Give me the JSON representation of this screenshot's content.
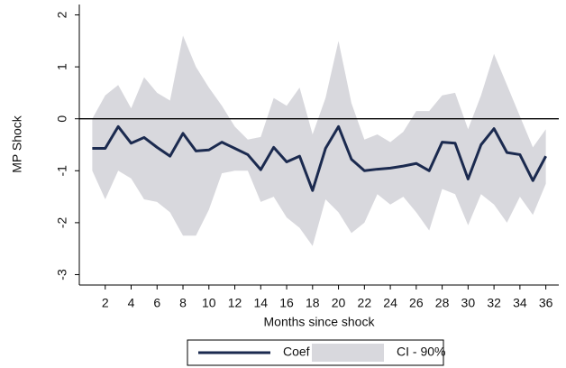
{
  "chart_data": {
    "type": "line",
    "x_label": "Months since shock",
    "y_label": "MP Shock",
    "x": [
      1,
      2,
      3,
      4,
      5,
      6,
      7,
      8,
      9,
      10,
      11,
      12,
      13,
      14,
      15,
      16,
      17,
      18,
      19,
      20,
      21,
      22,
      23,
      24,
      25,
      26,
      27,
      28,
      29,
      30,
      31,
      32,
      33,
      34,
      35,
      36
    ],
    "series": [
      {
        "name": "Coef",
        "color": "#1b2a4f",
        "values": [
          -0.57,
          -0.57,
          -0.15,
          -0.47,
          -0.36,
          -0.55,
          -0.72,
          -0.28,
          -0.62,
          -0.6,
          -0.45,
          -0.57,
          -0.69,
          -0.98,
          -0.55,
          -0.83,
          -0.72,
          -1.38,
          -0.57,
          -0.15,
          -0.78,
          -1.0,
          -0.97,
          -0.95,
          -0.91,
          -0.86,
          -1.0,
          -0.45,
          -0.47,
          -1.16,
          -0.5,
          -0.19,
          -0.65,
          -0.69,
          -1.19,
          -0.72
        ]
      },
      {
        "name": "CI - 90%",
        "color": "#d8d8dd",
        "upper": [
          0.0,
          0.45,
          0.65,
          0.2,
          0.8,
          0.5,
          0.35,
          1.6,
          1.0,
          0.6,
          0.25,
          -0.15,
          -0.4,
          -0.35,
          0.4,
          0.25,
          0.6,
          -0.3,
          0.4,
          1.5,
          0.3,
          -0.4,
          -0.3,
          -0.45,
          -0.25,
          0.15,
          0.15,
          0.45,
          0.5,
          -0.2,
          0.45,
          1.25,
          0.65,
          0.05,
          -0.55,
          -0.2
        ],
        "lower": [
          -1.0,
          -1.55,
          -1.0,
          -1.15,
          -1.55,
          -1.6,
          -1.8,
          -2.25,
          -2.25,
          -1.75,
          -1.05,
          -1.0,
          -1.0,
          -1.6,
          -1.5,
          -1.9,
          -2.1,
          -2.45,
          -1.55,
          -1.8,
          -2.2,
          -2.0,
          -1.45,
          -1.65,
          -1.5,
          -1.8,
          -2.15,
          -1.35,
          -1.45,
          -2.05,
          -1.45,
          -1.65,
          -2.0,
          -1.5,
          -1.85,
          -1.25
        ]
      }
    ],
    "xlim": [
      0,
      37
    ],
    "xticks": [
      2,
      4,
      6,
      8,
      10,
      12,
      14,
      16,
      18,
      20,
      22,
      24,
      26,
      28,
      30,
      32,
      34,
      36
    ],
    "ylim": [
      -3.2,
      2.2
    ],
    "yticks": [
      -3,
      -2,
      -1,
      0,
      1,
      2
    ],
    "hline": 0,
    "legend": "bottom"
  }
}
